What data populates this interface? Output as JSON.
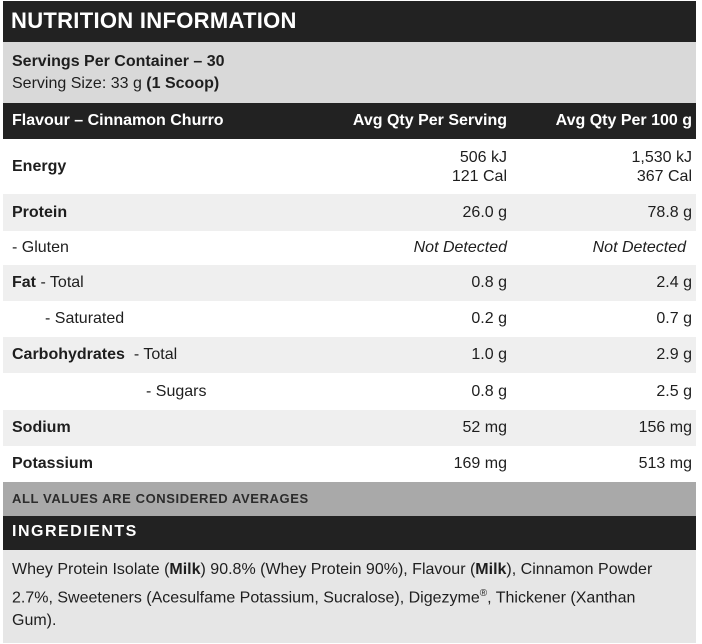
{
  "title": "NUTRITION INFORMATION",
  "servings_per_container": "Servings Per Container – 30",
  "serving_size_prefix": "Serving Size: 33 g ",
  "serving_size_bold": "(1 Scoop)",
  "table_header": {
    "flavour": "Flavour – Cinnamon Churro",
    "per_serving": "Avg Qty Per Serving",
    "per_100g": "Avg Qty Per 100 g"
  },
  "rows": {
    "energy": {
      "label": "Energy",
      "serving_kj": "506 kJ",
      "serving_cal": "121 Cal",
      "per100_kj": "1,530 kJ",
      "per100_cal": "367 Cal"
    },
    "protein": {
      "label": "Protein",
      "serving": "26.0 g",
      "per100": "78.8 g"
    },
    "gluten": {
      "label": "- Gluten",
      "serving": "Not Detected",
      "per100": "Not Detected"
    },
    "fat_total": {
      "label": "Fat",
      "sublabel": " - Total",
      "serving": "0.8 g",
      "per100": "2.4 g"
    },
    "fat_saturated": {
      "label": "- Saturated",
      "serving": "0.2 g",
      "per100": "0.7 g"
    },
    "carb_total": {
      "label": "Carbohydrates",
      "sublabel": "- Total",
      "serving": "1.0 g",
      "per100": "2.9 g"
    },
    "carb_sugars": {
      "label": "- Sugars",
      "serving": "0.8 g",
      "per100": "2.5 g"
    },
    "sodium": {
      "label": "Sodium",
      "serving": "52 mg",
      "per100": "156 mg"
    },
    "potassium": {
      "label": "Potassium",
      "serving": "169 mg",
      "per100": "513 mg"
    }
  },
  "averages_note": "ALL VALUES ARE CONSIDERED AVERAGES",
  "ingredients": {
    "title": "INGREDIENTS",
    "t1": "Whey Protein Isolate (",
    "b1": "Milk",
    "t2": ") 90.8% (Whey Protein 90%), Flavour (",
    "b2": "Milk",
    "t3": "), Cinnamon Powder 2.7%, Sweeteners (Acesulfame Potassium, Sucralose), Digezyme",
    "reg": "®",
    "t4": ", Thickener (Xanthan Gum)."
  },
  "colors": {
    "dark_bar": "#222222",
    "servings_bg": "#d9d9d9",
    "stripe_bg": "#efefef",
    "averages_bg": "#a9a9a9",
    "ingredients_bg": "#e6e6e6"
  }
}
